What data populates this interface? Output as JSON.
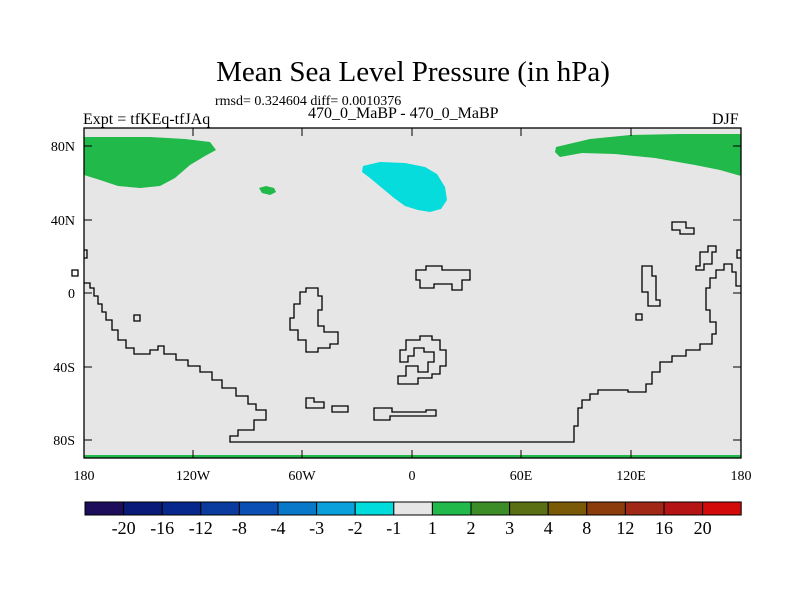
{
  "title": "Mean Sea Level Pressure (in hPa)",
  "stats": "rmsd= 0.324604 diff= 0.0010376",
  "left_label": "Expt = tfKEq-tfJAq",
  "center_label": "470_0_MaBP - 470_0_MaBP",
  "right_label": "DJF",
  "map": {
    "background_color": "#e6e6e6",
    "lat_ticks": [
      "80N",
      "40N",
      "0",
      "40S",
      "80S"
    ],
    "lon_ticks": [
      "180",
      "120W",
      "60W",
      "0",
      "60E",
      "120E",
      "180"
    ],
    "fill_colors": {
      "positive_1_to_2": "#21b94a",
      "negative_2_to_1": "#07dcdc"
    }
  },
  "colorbar": {
    "labels": [
      "-20",
      "-16",
      "-12",
      "-8",
      "-4",
      "-3",
      "-2",
      "-1",
      "1",
      "2",
      "3",
      "4",
      "8",
      "12",
      "16",
      "20"
    ],
    "colors": [
      "#1e0d5a",
      "#0a1a78",
      "#06288c",
      "#0a3ca0",
      "#0a50b4",
      "#0a78c8",
      "#0aa0dc",
      "#00dcdc",
      "#e6e6e6",
      "#21b94a",
      "#3c8c28",
      "#5a6e14",
      "#7a5a06",
      "#8c3c0a",
      "#a02814",
      "#b41414",
      "#d20a0a"
    ]
  }
}
